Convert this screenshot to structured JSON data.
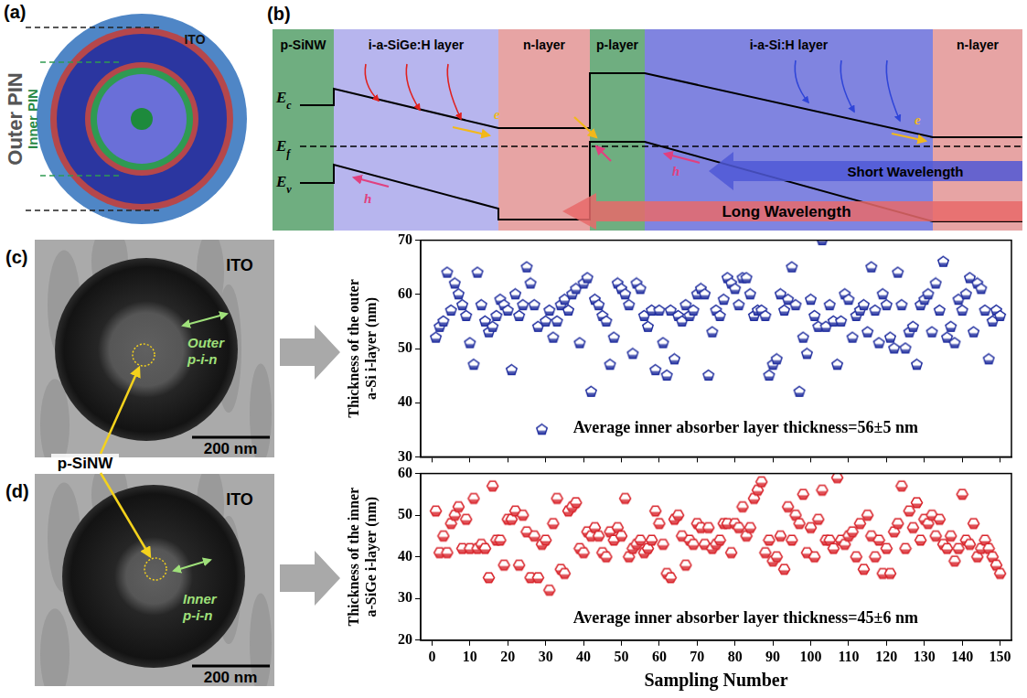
{
  "panel_a": {
    "letter": "(a)",
    "outer": "Outer PIN",
    "inner": "Inner PIN",
    "ito": "ITO"
  },
  "panel_b": {
    "letter": "(b)",
    "layers": [
      "p-SiNW",
      "i-a-SiGe:H layer",
      "n-layer",
      "p-layer",
      "i-a-Si:H layer",
      "n-layer"
    ],
    "bands": [
      {
        "base": "E",
        "sub": "c"
      },
      {
        "base": "E",
        "sub": "f"
      },
      {
        "base": "E",
        "sub": "v"
      }
    ],
    "electron": "e",
    "hole": "h",
    "short": "Short Wavelength",
    "long": "Long Wavelength"
  },
  "panel_c": {
    "letter": "(c)",
    "ito": "ITO",
    "region": [
      "Outer",
      "p-i-n"
    ],
    "scale_bar": "200 nm",
    "core": "p-SiNW"
  },
  "panel_d": {
    "letter": "(d)",
    "ito": "ITO",
    "region": [
      "Inner",
      "p-i-n"
    ],
    "scale_bar": "200 nm"
  },
  "chart_data": [
    {
      "type": "scatter",
      "y_label": [
        "Thickness of the outer",
        "a-Si i-layer (nm)"
      ],
      "annotation": "Average inner absorber layer thickness=56±5 nm",
      "x": [
        1,
        2,
        3,
        4,
        5,
        6,
        7,
        8,
        9,
        10,
        11,
        12,
        13,
        14,
        15,
        16,
        17,
        18,
        19,
        20,
        21,
        22,
        23,
        24,
        25,
        26,
        27,
        28,
        29,
        30,
        31,
        32,
        33,
        34,
        35,
        36,
        37,
        38,
        39,
        40,
        41,
        42,
        43,
        44,
        45,
        46,
        47,
        48,
        49,
        50,
        51,
        52,
        53,
        54,
        55,
        56,
        57,
        58,
        59,
        60,
        61,
        62,
        63,
        64,
        65,
        66,
        67,
        68,
        69,
        70,
        71,
        72,
        73,
        74,
        75,
        76,
        77,
        78,
        79,
        80,
        81,
        82,
        83,
        84,
        85,
        86,
        87,
        88,
        89,
        90,
        91,
        92,
        93,
        94,
        95,
        96,
        97,
        98,
        99,
        100,
        101,
        102,
        103,
        104,
        105,
        106,
        107,
        108,
        109,
        110,
        111,
        112,
        113,
        114,
        115,
        116,
        117,
        118,
        119,
        120,
        121,
        122,
        123,
        124,
        125,
        126,
        127,
        128,
        129,
        130,
        131,
        132,
        133,
        134,
        135,
        136,
        137,
        138,
        139,
        140,
        141,
        142,
        143,
        144,
        145,
        146,
        147,
        148,
        149,
        150
      ],
      "values": [
        52,
        54,
        55,
        64,
        57,
        62,
        60,
        58,
        56,
        51,
        47,
        64,
        58,
        55,
        53,
        54,
        56,
        59,
        58,
        57,
        46,
        60,
        56,
        58,
        65,
        62,
        58,
        54,
        35,
        55,
        57,
        52,
        55,
        58,
        59,
        57,
        60,
        61,
        51,
        62,
        63,
        42,
        59,
        58,
        56,
        55,
        47,
        52,
        62,
        61,
        60,
        58,
        49,
        62,
        61,
        56,
        54,
        57,
        46,
        57,
        51,
        45,
        57,
        48,
        56,
        55,
        58,
        56,
        57,
        60,
        61,
        60,
        45,
        53,
        57,
        56,
        59,
        63,
        62,
        61,
        58,
        63,
        63,
        60,
        56,
        57,
        57,
        56,
        45,
        47,
        48,
        60,
        57,
        59,
        65,
        58,
        42,
        52,
        49,
        59,
        56,
        54,
        70,
        54,
        58,
        55,
        47,
        55,
        60,
        59,
        52,
        56,
        57,
        58,
        53,
        65,
        57,
        51,
        60,
        58,
        52,
        50,
        64,
        58,
        50,
        53,
        54,
        47,
        58,
        59,
        60,
        53,
        62,
        57,
        66,
        52,
        54,
        51,
        59,
        57,
        60,
        63,
        53,
        62,
        61,
        57,
        48,
        55,
        57,
        56
      ],
      "color": "#1f2d9e",
      "marker": "pentagon",
      "xlim": [
        -3,
        153
      ],
      "xticks": [
        0,
        10,
        20,
        30,
        40,
        50,
        60,
        70,
        80,
        90,
        100,
        110,
        120,
        130,
        140,
        150
      ],
      "ylim": [
        30,
        70
      ],
      "yticks": [
        30,
        40,
        50,
        60,
        70
      ],
      "grid": false,
      "tick_labels": "y"
    },
    {
      "type": "scatter",
      "y_label": [
        "Thickness of the inner",
        "a-SiGe i-layer (nm)"
      ],
      "x_label": "Sampling Number",
      "annotation": "Average inner absorber layer thickness=45±6 nm",
      "x": [
        1,
        2,
        3,
        4,
        5,
        6,
        7,
        8,
        9,
        10,
        11,
        12,
        13,
        14,
        15,
        16,
        17,
        18,
        19,
        20,
        21,
        22,
        23,
        24,
        25,
        26,
        27,
        28,
        29,
        30,
        31,
        32,
        33,
        34,
        35,
        36,
        37,
        38,
        39,
        40,
        41,
        42,
        43,
        44,
        45,
        46,
        47,
        48,
        49,
        50,
        51,
        52,
        53,
        54,
        55,
        56,
        57,
        58,
        59,
        60,
        61,
        62,
        63,
        64,
        65,
        66,
        67,
        68,
        69,
        70,
        71,
        72,
        73,
        74,
        75,
        76,
        77,
        78,
        79,
        80,
        81,
        82,
        83,
        84,
        85,
        86,
        87,
        88,
        89,
        90,
        91,
        92,
        93,
        94,
        95,
        96,
        97,
        98,
        99,
        100,
        101,
        102,
        103,
        104,
        105,
        106,
        107,
        108,
        109,
        110,
        111,
        112,
        113,
        114,
        115,
        116,
        117,
        118,
        119,
        120,
        121,
        122,
        123,
        124,
        125,
        126,
        127,
        128,
        129,
        130,
        131,
        132,
        133,
        134,
        135,
        136,
        137,
        138,
        139,
        140,
        141,
        142,
        143,
        144,
        145,
        146,
        147,
        148,
        149,
        150
      ],
      "values": [
        51,
        41,
        45,
        41,
        48,
        50,
        52,
        42,
        49,
        42,
        54,
        42,
        43,
        42,
        35,
        57,
        44,
        44,
        38,
        49,
        49,
        51,
        38,
        50,
        46,
        35,
        45,
        35,
        43,
        44,
        32,
        48,
        54,
        37,
        36,
        51,
        52,
        53,
        42,
        41,
        46,
        45,
        47,
        45,
        41,
        40,
        46,
        44,
        47,
        45,
        54,
        40,
        42,
        43,
        44,
        41,
        42,
        44,
        51,
        48,
        43,
        36,
        35,
        49,
        50,
        45,
        38,
        44,
        43,
        48,
        47,
        43,
        47,
        42,
        43,
        44,
        48,
        48,
        41,
        48,
        47,
        52,
        45,
        47,
        54,
        56,
        58,
        41,
        44,
        39,
        40,
        45,
        37,
        52,
        44,
        50,
        48,
        55,
        41,
        47,
        40,
        49,
        56,
        44,
        44,
        42,
        59,
        44,
        43,
        45,
        46,
        40,
        48,
        37,
        50,
        45,
        40,
        44,
        36,
        42,
        36,
        46,
        48,
        57,
        42,
        51,
        47,
        53,
        44,
        49,
        48,
        50,
        45,
        49,
        43,
        42,
        45,
        39,
        42,
        55,
        44,
        43,
        48,
        40,
        42,
        44,
        42,
        40,
        38,
        36
      ],
      "color": "#d8232a",
      "marker": "hexagon",
      "xlim": [
        -3,
        153
      ],
      "xticks": [
        0,
        10,
        20,
        30,
        40,
        50,
        60,
        70,
        80,
        90,
        100,
        110,
        120,
        130,
        140,
        150
      ],
      "ylim": [
        20,
        60
      ],
      "yticks": [
        20,
        30,
        40,
        50,
        60
      ],
      "grid": false
    }
  ]
}
